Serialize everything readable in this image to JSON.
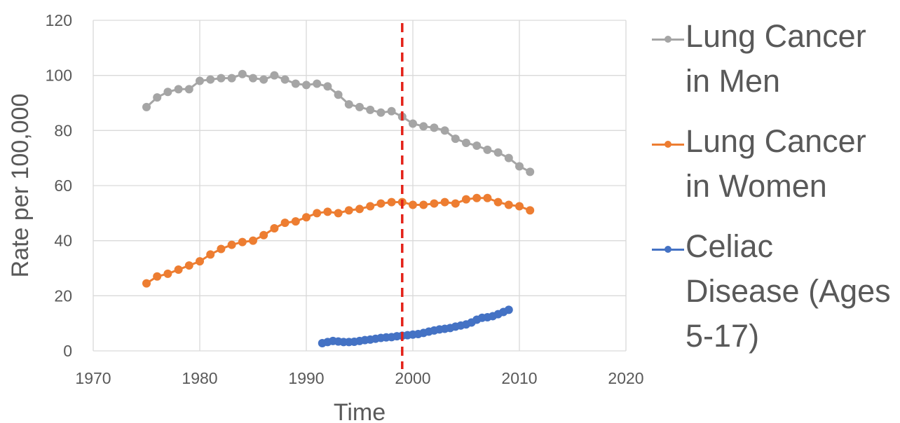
{
  "chart_data": {
    "type": "line",
    "xlabel": "Time",
    "ylabel": "Rate per 100,000",
    "xlim": [
      1970,
      2020
    ],
    "ylim": [
      0,
      120
    ],
    "x_ticks": [
      "1970",
      "1980",
      "1990",
      "2000",
      "2010",
      "2020"
    ],
    "y_ticks": [
      "0",
      "20",
      "40",
      "60",
      "80",
      "100",
      "120"
    ],
    "grid": true,
    "legend_position": "right",
    "vertical_reference_line": {
      "x": 1999,
      "color": "#e32219",
      "style": "dashed"
    },
    "series": [
      {
        "name": "Lung Cancer\nin Men",
        "color": "#a5a5a5",
        "x": [
          1975,
          1976,
          1977,
          1978,
          1979,
          1980,
          1981,
          1982,
          1983,
          1984,
          1985,
          1986,
          1987,
          1988,
          1989,
          1990,
          1991,
          1992,
          1993,
          1994,
          1995,
          1996,
          1997,
          1998,
          1999,
          2000,
          2001,
          2002,
          2003,
          2004,
          2005,
          2006,
          2007,
          2008,
          2009,
          2010,
          2011
        ],
        "values": [
          88.5,
          92,
          94,
          95,
          95,
          98,
          98.5,
          99,
          99,
          100.5,
          99,
          98.5,
          100,
          98.5,
          97,
          96.5,
          97,
          96,
          93,
          89.5,
          88.5,
          87.5,
          86.5,
          87,
          85,
          82.5,
          81.5,
          81,
          80,
          77,
          75.5,
          74.5,
          73,
          72,
          70,
          67,
          65
        ]
      },
      {
        "name": "Lung Cancer\nin Women",
        "color": "#ed7d31",
        "x": [
          1975,
          1976,
          1977,
          1978,
          1979,
          1980,
          1981,
          1982,
          1983,
          1984,
          1985,
          1986,
          1987,
          1988,
          1989,
          1990,
          1991,
          1992,
          1993,
          1994,
          1995,
          1996,
          1997,
          1998,
          1999,
          2000,
          2001,
          2002,
          2003,
          2004,
          2005,
          2006,
          2007,
          2008,
          2009,
          2010,
          2011
        ],
        "values": [
          24.5,
          27,
          28,
          29.5,
          31,
          32.5,
          35,
          37,
          38.5,
          39.5,
          40,
          42,
          44.5,
          46.5,
          47,
          48.5,
          50,
          50.5,
          50,
          51,
          51.5,
          52.5,
          53.5,
          54,
          54,
          53,
          53,
          53.5,
          54,
          53.5,
          55,
          55.5,
          55.5,
          54,
          53,
          52.5,
          51
        ]
      },
      {
        "name": "Celiac\nDisease (Ages\n5-17)",
        "color": "#4472c4",
        "x": [
          1991.5,
          1992,
          1992.5,
          1993,
          1993.5,
          1994,
          1994.5,
          1995,
          1995.5,
          1996,
          1996.5,
          1997,
          1997.5,
          1998,
          1998.5,
          1999,
          1999.5,
          2000,
          2000.5,
          2001,
          2001.5,
          2002,
          2002.5,
          2003,
          2003.5,
          2004,
          2004.5,
          2005,
          2005.5,
          2006,
          2006.5,
          2007,
          2007.5,
          2008,
          2008.5,
          2009
        ],
        "values": [
          2.8,
          3.2,
          3.6,
          3.4,
          3.2,
          3.2,
          3.3,
          3.6,
          3.9,
          4.1,
          4.4,
          4.7,
          4.9,
          5.0,
          5.3,
          5.5,
          5.7,
          5.9,
          6.1,
          6.5,
          7.0,
          7.4,
          7.8,
          8.0,
          8.3,
          8.8,
          9.2,
          9.6,
          10.3,
          11.3,
          12.0,
          12.2,
          12.6,
          13.3,
          14.1,
          14.9
        ]
      }
    ]
  }
}
